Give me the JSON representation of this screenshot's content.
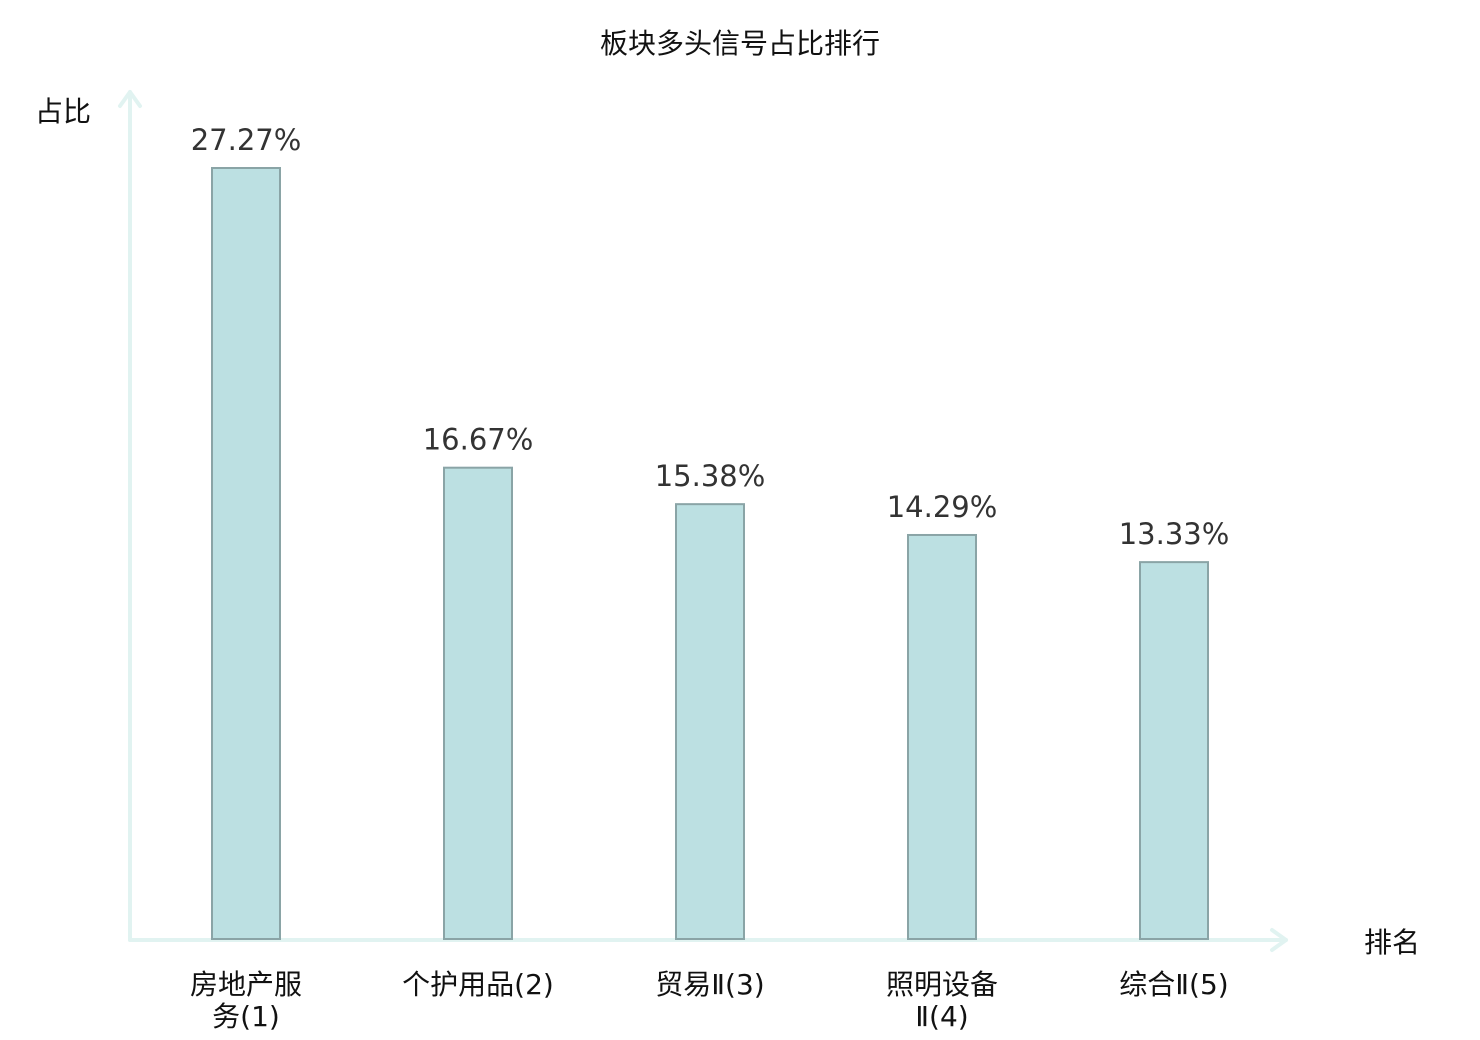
{
  "chart_data": {
    "type": "bar",
    "title": "板块多头信号占比排行",
    "ylabel": "占比",
    "xlabel": "排名",
    "categories": [
      {
        "lines": [
          "房地产服",
          "务(1)"
        ]
      },
      {
        "lines": [
          "个护用品(2)"
        ]
      },
      {
        "lines": [
          "贸易Ⅱ(3)"
        ]
      },
      {
        "lines": [
          "照明设备",
          "Ⅱ(4)"
        ]
      },
      {
        "lines": [
          "综合Ⅱ(5)"
        ],
        "highlight": true
      }
    ],
    "values": [
      27.27,
      16.67,
      15.38,
      14.29,
      13.33
    ],
    "value_labels": [
      "27.27%",
      "16.67%",
      "15.38%",
      "14.29%",
      "13.33%"
    ],
    "ylim": [
      0,
      27.27
    ],
    "grid": false,
    "colors": {
      "bar_fill": "#bce0e2",
      "bar_stroke": "#8aa4a6",
      "axis": "#e1f3f1",
      "highlight_label": "#e0201b",
      "label": "#111111",
      "value_label": "#333333"
    }
  }
}
